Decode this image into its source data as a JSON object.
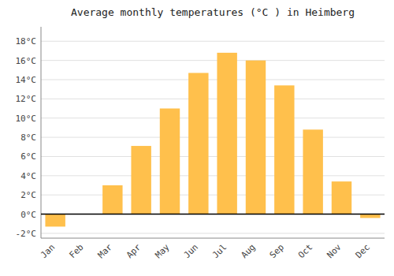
{
  "chart_data": {
    "type": "bar",
    "title": "Average monthly temperatures (°C ) in Heimberg",
    "categories": [
      "Jan",
      "Feb",
      "Mar",
      "Apr",
      "May",
      "Jun",
      "Jul",
      "Aug",
      "Sep",
      "Oct",
      "Nov",
      "Dec"
    ],
    "values": [
      -1.3,
      0.0,
      3.0,
      7.1,
      11.0,
      14.7,
      16.8,
      16.0,
      13.4,
      8.8,
      3.4,
      -0.4
    ],
    "color": "#FFC04C",
    "ylim": [
      -2.5,
      19.5
    ],
    "yticks": [
      {
        "value": -2,
        "label": "-2°C"
      },
      {
        "value": 0,
        "label": "0°C"
      },
      {
        "value": 2,
        "label": "2°C"
      },
      {
        "value": 4,
        "label": "4°C"
      },
      {
        "value": 6,
        "label": "6°C"
      },
      {
        "value": 8,
        "label": "8°C"
      },
      {
        "value": 10,
        "label": "10°C"
      },
      {
        "value": 12,
        "label": "12°C"
      },
      {
        "value": 14,
        "label": "14°C"
      },
      {
        "value": 16,
        "label": "16°C"
      },
      {
        "value": 18,
        "label": "18°C"
      }
    ],
    "grid": true
  }
}
